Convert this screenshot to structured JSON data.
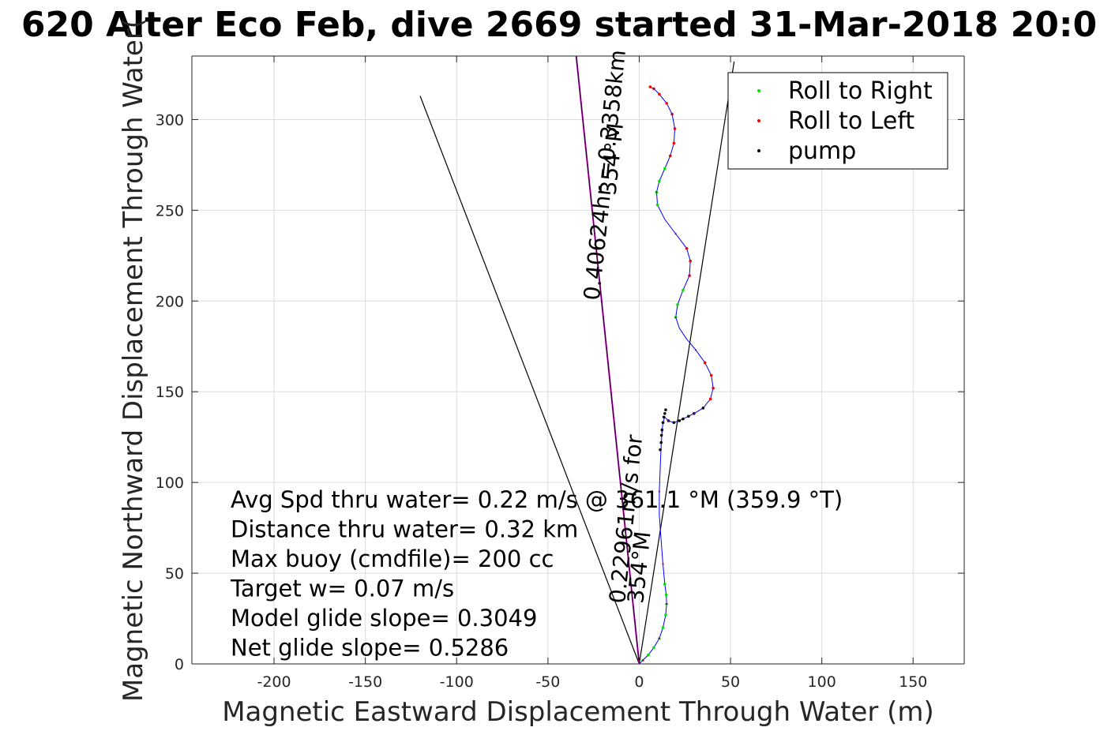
{
  "chart_data": {
    "type": "scatter",
    "title": "620 Alter Eco Feb, dive 2669 started 31-Mar-2018 20:0",
    "xlabel": "Magnetic Eastward Displacement Through Water (m)",
    "ylabel": "Magnetic Northward Displacement Through Water(",
    "xlim": [
      -245,
      178
    ],
    "ylim": [
      0,
      335
    ],
    "xticks": [
      -200,
      -150,
      -100,
      -50,
      0,
      50,
      100,
      150
    ],
    "yticks": [
      0,
      50,
      100,
      150,
      200,
      250,
      300
    ],
    "xtick_labels": [
      "-200",
      "-150",
      "-100",
      "-50",
      "0",
      "50",
      "100",
      "150"
    ],
    "ytick_labels": [
      "0",
      "50",
      "100",
      "150",
      "200",
      "250",
      "300"
    ],
    "grid": true,
    "legend_position": "top-right",
    "legend": [
      {
        "label": "Roll to Right",
        "color": "#00e000"
      },
      {
        "label": "Roll to Left",
        "color": "#ff0000"
      },
      {
        "label": "pump",
        "color": "#000000"
      }
    ],
    "track_color": "#0000ff",
    "heading_line_color": "#cc00cc",
    "track": [
      [
        0,
        0
      ],
      [
        2,
        2
      ],
      [
        5,
        5
      ],
      [
        8,
        9
      ],
      [
        11,
        14
      ],
      [
        13,
        20
      ],
      [
        14.5,
        27
      ],
      [
        15,
        33
      ],
      [
        14.8,
        38
      ],
      [
        14,
        44
      ],
      [
        13,
        55
      ],
      [
        12,
        68
      ],
      [
        11,
        82
      ],
      [
        11,
        95
      ],
      [
        11.5,
        108
      ],
      [
        12,
        120
      ],
      [
        12.5,
        128
      ],
      [
        13,
        133
      ],
      [
        14,
        136
      ],
      [
        16,
        134
      ],
      [
        19,
        133
      ],
      [
        24,
        135
      ],
      [
        30,
        138
      ],
      [
        35,
        141
      ],
      [
        39,
        146
      ],
      [
        40.5,
        152
      ],
      [
        39.5,
        159
      ],
      [
        36,
        166
      ],
      [
        31,
        173
      ],
      [
        26,
        179
      ],
      [
        22,
        185
      ],
      [
        20,
        191
      ],
      [
        21,
        198
      ],
      [
        24,
        206
      ],
      [
        27.5,
        214
      ],
      [
        28,
        222
      ],
      [
        26,
        229
      ],
      [
        20,
        237
      ],
      [
        14,
        245
      ],
      [
        10,
        253
      ],
      [
        9.5,
        260
      ],
      [
        11,
        266
      ],
      [
        14,
        273
      ],
      [
        17,
        280
      ],
      [
        19,
        287
      ],
      [
        19.5,
        295
      ],
      [
        18,
        303
      ],
      [
        15,
        309
      ],
      [
        11,
        314
      ],
      [
        8,
        317
      ],
      [
        6,
        318
      ]
    ],
    "right_roll_points": [
      [
        2,
        2
      ],
      [
        5,
        5
      ],
      [
        8,
        9
      ],
      [
        11,
        14
      ],
      [
        13,
        20
      ],
      [
        14.5,
        27
      ],
      [
        15,
        33
      ],
      [
        14.8,
        38
      ],
      [
        14,
        44
      ],
      [
        20,
        191
      ],
      [
        21,
        198
      ],
      [
        24,
        206
      ],
      [
        10,
        253
      ],
      [
        9.5,
        260
      ],
      [
        11,
        266
      ],
      [
        14,
        273
      ]
    ],
    "left_roll_points": [
      [
        39,
        146
      ],
      [
        40.5,
        152
      ],
      [
        39.5,
        159
      ],
      [
        36,
        166
      ],
      [
        27.5,
        214
      ],
      [
        28,
        222
      ],
      [
        26,
        229
      ],
      [
        17,
        280
      ],
      [
        19,
        287
      ],
      [
        19.5,
        295
      ],
      [
        18,
        303
      ],
      [
        15,
        309
      ],
      [
        11,
        314
      ],
      [
        8,
        317
      ],
      [
        6,
        318
      ]
    ],
    "pump_points": [
      [
        11.5,
        118
      ],
      [
        12,
        122
      ],
      [
        12.2,
        126
      ],
      [
        12.5,
        129
      ],
      [
        13,
        133
      ],
      [
        13.5,
        136
      ],
      [
        14,
        138
      ],
      [
        14.5,
        140
      ],
      [
        16,
        134
      ],
      [
        19,
        133
      ],
      [
        22,
        134
      ],
      [
        24,
        135
      ],
      [
        27,
        136.5
      ],
      [
        30,
        138
      ],
      [
        35,
        141
      ]
    ],
    "heading_line": [
      [
        0,
        0
      ],
      [
        -34.5,
        335
      ]
    ],
    "cone_lines": [
      [
        [
          0,
          0
        ],
        [
          -120,
          313
        ]
      ],
      [
        [
          0,
          0
        ],
        [
          52,
          332
        ]
      ]
    ],
    "annotations": [
      "Avg Spd thru water=  0.22 m/s @ 361.1 °M (359.9 °T)",
      "Distance thru water=  0.32 km",
      "Max buoy (cmdfile)= 200 cc",
      "Target w= 0.07 m/s",
      "Model glide slope= 0.3049",
      "Net glide slope= 0.5286"
    ],
    "rotated_labels": [
      {
        "text": "0.40624hr =0.3358km",
        "x": -22,
        "y": 200
      },
      {
        "text": "354°M",
        "x": -13,
        "y": 258
      },
      {
        "text": "0.22961m/s for",
        "x": -8,
        "y": 33
      },
      {
        "text": "354°M",
        "x": 2,
        "y": 33
      }
    ]
  }
}
